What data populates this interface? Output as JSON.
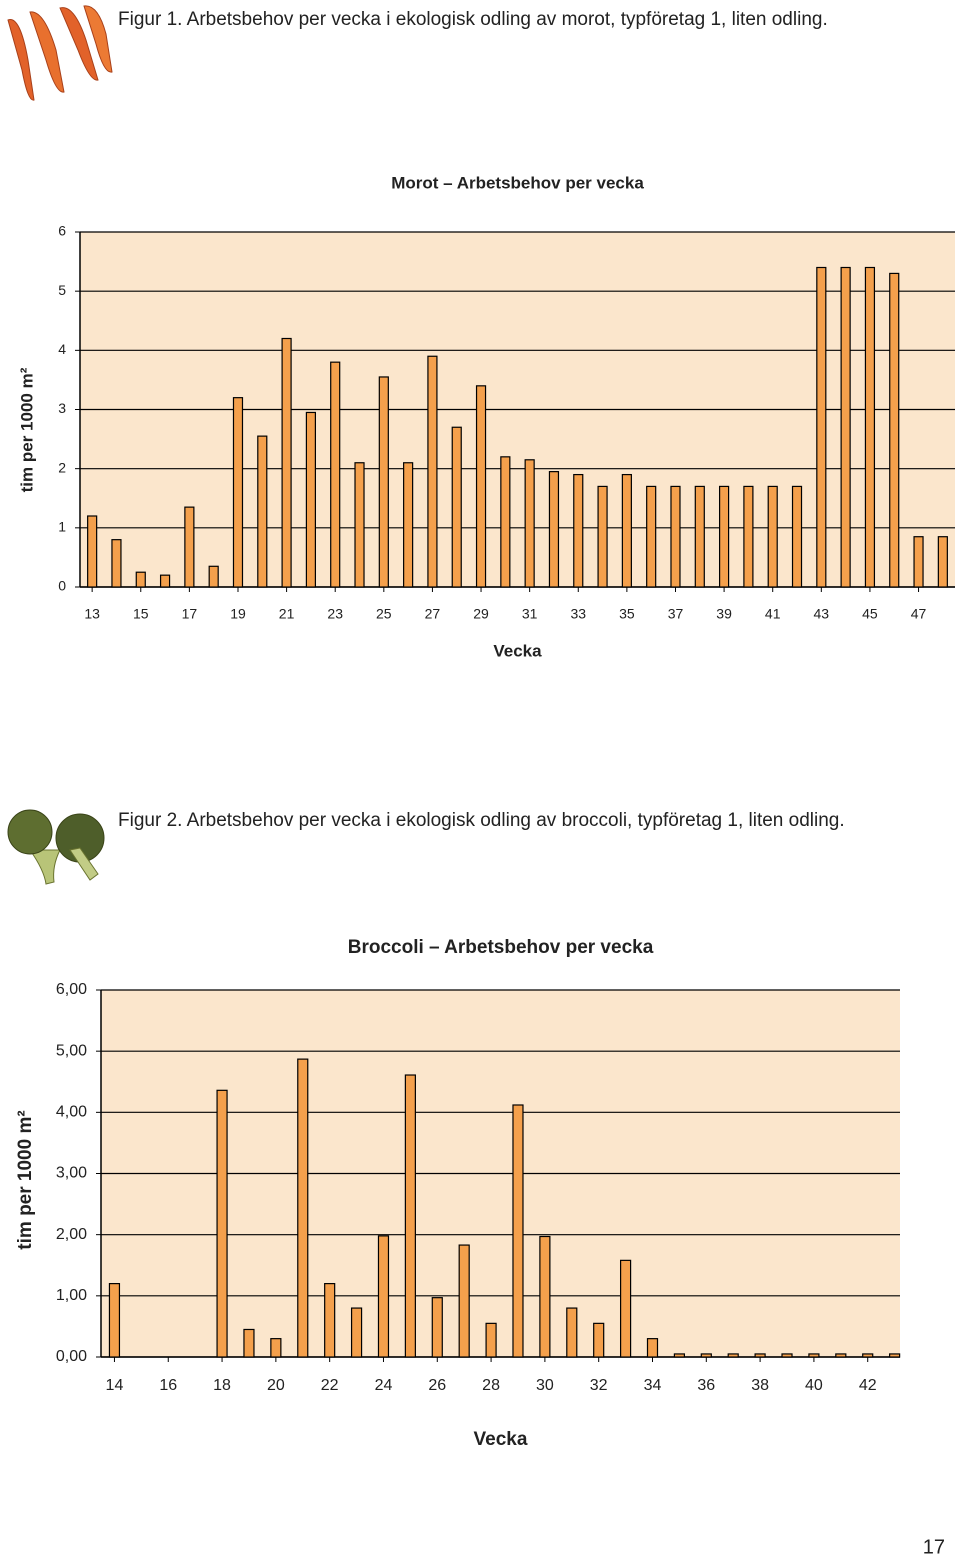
{
  "captions": [
    "Figur 1. Arbetsbehov per vecka i ekologisk odling av morot, typföretag 1, liten odling.",
    "Figur 2. Arbetsbehov per vecka i ekologisk odling av broccoli, typföretag 1, liten odling."
  ],
  "page_number": "17",
  "chart_data": [
    {
      "type": "bar",
      "title": "Morot – Arbetsbehov per vecka",
      "x_label": "Vecka",
      "y_label": "tim per 1000 m²",
      "x": [
        13,
        14,
        15,
        16,
        17,
        18,
        19,
        20,
        21,
        22,
        23,
        24,
        25,
        26,
        27,
        28,
        29,
        30,
        31,
        32,
        33,
        34,
        35,
        36,
        37,
        38,
        39,
        40,
        41,
        42,
        43,
        44,
        45,
        46,
        47,
        48
      ],
      "values": [
        1.2,
        0.8,
        0.25,
        0.2,
        1.35,
        0.35,
        3.2,
        2.55,
        4.2,
        2.95,
        3.8,
        2.1,
        3.55,
        2.1,
        3.9,
        2.7,
        3.4,
        2.2,
        2.15,
        1.95,
        1.9,
        1.7,
        1.9,
        1.7,
        1.7,
        1.7,
        1.7,
        1.7,
        1.7,
        1.7,
        5.4,
        5.4,
        5.4,
        5.3,
        0.85,
        0.85
      ],
      "color": "#f4a04c",
      "background": "#fbe6cc",
      "xlim": [
        12.5,
        48.5
      ],
      "xticks": [
        13,
        15,
        17,
        19,
        21,
        23,
        25,
        27,
        29,
        31,
        33,
        35,
        37,
        39,
        41,
        43,
        45,
        47
      ],
      "ylim": [
        0,
        6
      ],
      "yticks": [
        0,
        1,
        2,
        3,
        4,
        5,
        6
      ],
      "grid": true
    },
    {
      "type": "bar",
      "title": "Broccoli – Arbetsbehov per vecka",
      "x_label": "Vecka",
      "y_label": "tim per 1000 m²",
      "x": [
        14,
        15,
        16,
        17,
        18,
        19,
        20,
        21,
        22,
        23,
        24,
        25,
        26,
        27,
        28,
        29,
        30,
        31,
        32,
        33,
        34,
        35,
        36,
        37,
        38,
        39,
        40,
        41,
        42,
        43
      ],
      "values": [
        1.2,
        0,
        0,
        0,
        4.36,
        0.45,
        0.3,
        4.87,
        1.2,
        0.8,
        1.98,
        4.61,
        0.97,
        1.83,
        0.55,
        4.12,
        1.97,
        0.8,
        0.55,
        1.58,
        0.3,
        0.05,
        0.05,
        0.05,
        0.05,
        0.05,
        0.05,
        0.05,
        0.05,
        0.05
      ],
      "color": "#f4a04c",
      "background": "#fbe6cc",
      "xlim": [
        13.5,
        43.2
      ],
      "xticks": [
        14,
        16,
        18,
        20,
        22,
        24,
        26,
        28,
        30,
        32,
        34,
        36,
        38,
        40,
        42
      ],
      "ylim": [
        0,
        6
      ],
      "yticks": [
        {
          "value": 0,
          "label": "0,00"
        },
        {
          "value": 1,
          "label": "1,00"
        },
        {
          "value": 2,
          "label": "2,00"
        },
        {
          "value": 3,
          "label": "3,00"
        },
        {
          "value": 4,
          "label": "4,00"
        },
        {
          "value": 5,
          "label": "5,00"
        },
        {
          "value": 6,
          "label": "6,00"
        }
      ],
      "grid": true
    }
  ]
}
